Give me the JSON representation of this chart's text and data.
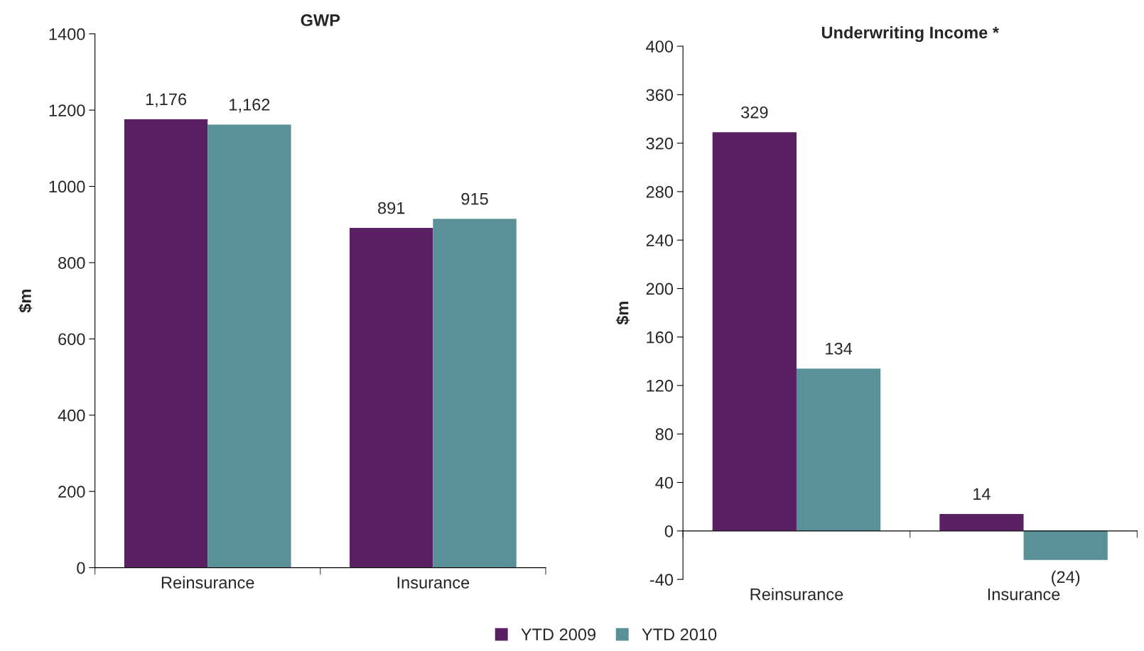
{
  "chart_data": [
    {
      "type": "bar",
      "title": "GWP",
      "ylabel": "$m",
      "categories": [
        "Reinsurance",
        "Insurance"
      ],
      "series": [
        {
          "name": "YTD 2009",
          "color": "#5b1f63",
          "values": [
            1176,
            891
          ],
          "value_labels": [
            "1,176",
            "891"
          ]
        },
        {
          "name": "YTD 2010",
          "color": "#5a9198",
          "values": [
            1162,
            915
          ],
          "value_labels": [
            "1,162",
            "915"
          ]
        }
      ],
      "ylim": [
        0,
        1400
      ],
      "yticks": [
        0,
        200,
        400,
        600,
        800,
        1000,
        1200,
        1400
      ],
      "legend": "bottom"
    },
    {
      "type": "bar",
      "title": "Underwriting Income *",
      "ylabel": "$m",
      "categories": [
        "Reinsurance",
        "Insurance"
      ],
      "series": [
        {
          "color": "#5b1f63",
          "values": [
            329,
            14
          ],
          "value_labels": [
            "329",
            "14"
          ]
        },
        {
          "color": "#5a9198",
          "values": [
            134,
            -24
          ],
          "value_labels": [
            "134",
            "(24)"
          ]
        }
      ],
      "ylim": [
        -40,
        400
      ],
      "yticks": [
        -40,
        0,
        40,
        80,
        120,
        160,
        200,
        240,
        280,
        320,
        360,
        400
      ]
    }
  ]
}
